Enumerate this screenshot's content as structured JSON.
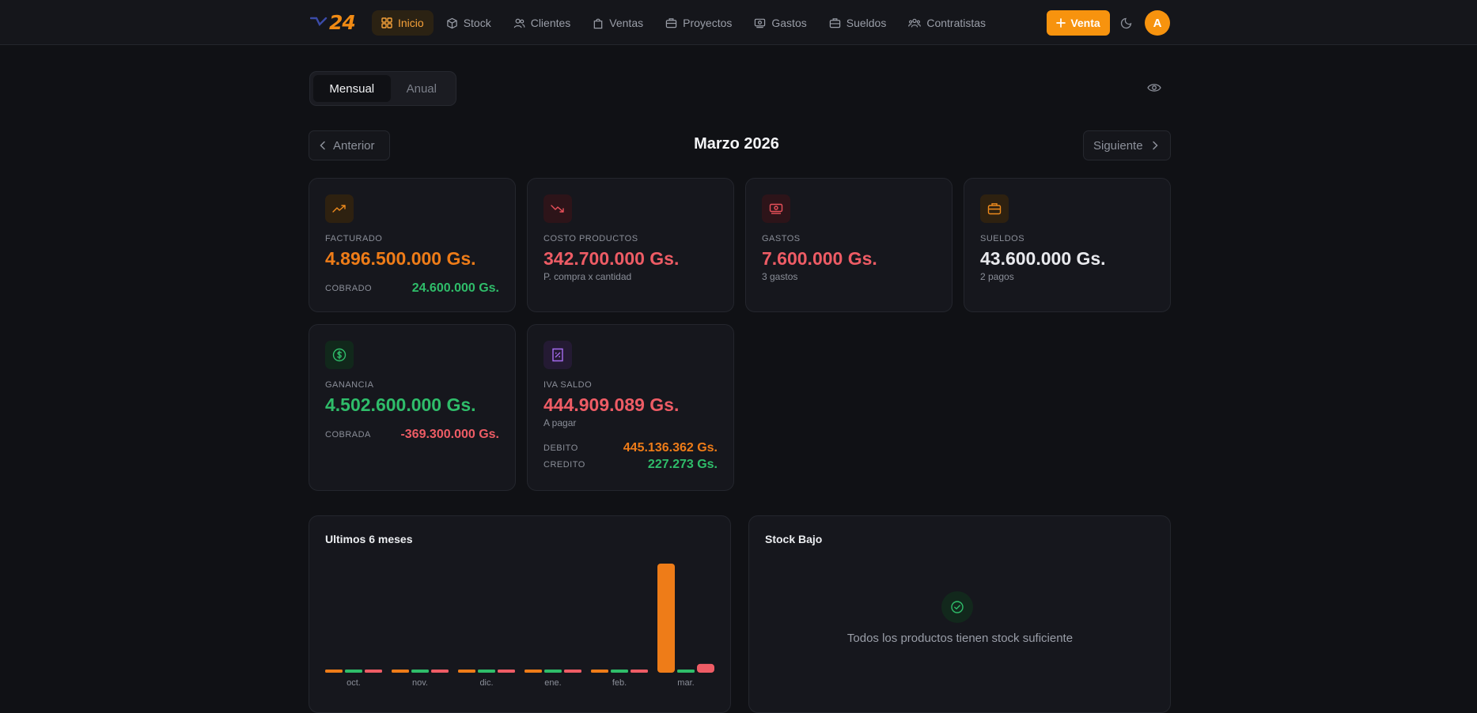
{
  "app": {
    "logo_text": "24"
  },
  "nav": {
    "items": [
      {
        "label": "Inicio",
        "icon": "grid-icon",
        "active": true
      },
      {
        "label": "Stock",
        "icon": "box-icon"
      },
      {
        "label": "Clientes",
        "icon": "users-icon"
      },
      {
        "label": "Ventas",
        "icon": "shopping-bag-icon"
      },
      {
        "label": "Proyectos",
        "icon": "briefcase-icon"
      },
      {
        "label": "Gastos",
        "icon": "receipt-icon"
      },
      {
        "label": "Sueldos",
        "icon": "wallet-icon"
      },
      {
        "label": "Contratistas",
        "icon": "team-icon"
      }
    ],
    "venta_button": "Venta",
    "avatar_initial": "A"
  },
  "period": {
    "options": [
      "Mensual",
      "Anual"
    ],
    "selected": "Mensual"
  },
  "month_nav": {
    "prev": "Anterior",
    "title": "Marzo 2026",
    "next": "Siguiente"
  },
  "cards": {
    "facturado": {
      "label": "FACTURADO",
      "value": "4.896.500.000 Gs.",
      "row_label": "COBRADO",
      "row_value": "24.600.000 Gs."
    },
    "costo": {
      "label": "COSTO PRODUCTOS",
      "value": "342.700.000 Gs.",
      "sub": "P. compra x cantidad"
    },
    "gastos": {
      "label": "GASTOS",
      "value": "7.600.000 Gs.",
      "sub": "3 gastos"
    },
    "sueldos": {
      "label": "SUELDOS",
      "value": "43.600.000 Gs.",
      "sub": "2 pagos"
    },
    "ganancia": {
      "label": "GANANCIA",
      "value": "4.502.600.000 Gs.",
      "row_label": "COBRADA",
      "row_value": "-369.300.000 Gs."
    },
    "iva": {
      "label": "IVA SALDO",
      "value": "444.909.089 Gs.",
      "sub": "A pagar",
      "debito_label": "DEBITO",
      "debito_value": "445.136.362 Gs.",
      "credito_label": "CREDITO",
      "credito_value": "227.273 Gs."
    }
  },
  "colors": {
    "accent": "#f7930e",
    "orange": "#ee7c18",
    "red": "#ee5c65",
    "green": "#2fbd6a"
  },
  "chart_title": "Ultimos 6 meses",
  "chart_data": {
    "type": "bar",
    "categories": [
      "oct.",
      "nov.",
      "dic.",
      "ene.",
      "feb.",
      "mar."
    ],
    "series": [
      {
        "color": "#ee7c18",
        "values": [
          0,
          0,
          0,
          0,
          0,
          4896500000
        ]
      },
      {
        "color": "#2fbd6a",
        "values": [
          0,
          0,
          0,
          0,
          0,
          24600000
        ]
      },
      {
        "color": "#ee5c65",
        "values": [
          0,
          0,
          0,
          0,
          0,
          393900000
        ]
      }
    ],
    "grid": false,
    "legend": "none"
  },
  "stock": {
    "title": "Stock Bajo",
    "message": "Todos los productos tienen stock suficiente"
  }
}
